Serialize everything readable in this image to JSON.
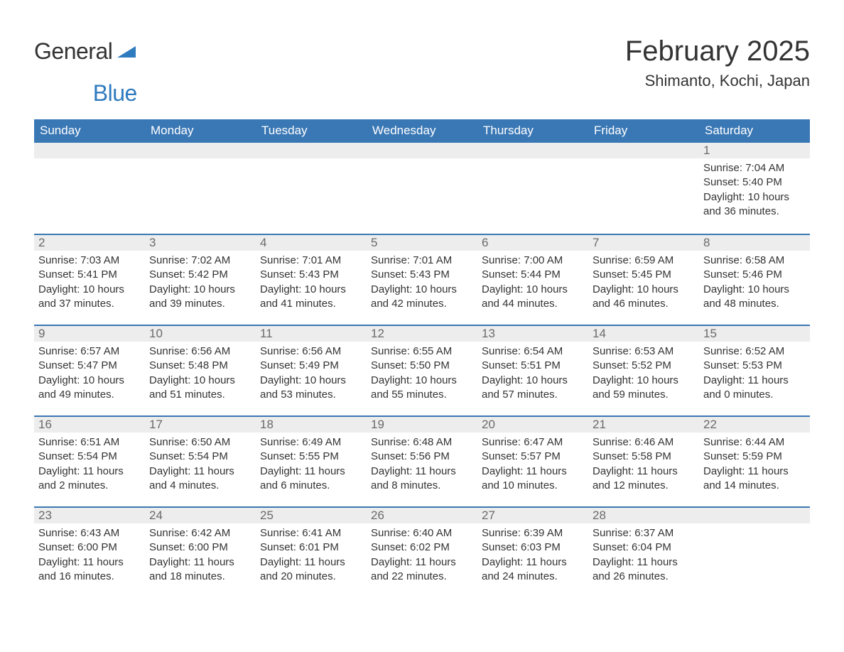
{
  "logo": {
    "part1": "General",
    "part2": "Blue"
  },
  "title": "February 2025",
  "subtitle": "Shimanto, Kochi, Japan",
  "colors": {
    "header_bg": "#3a78b5",
    "header_text": "#ffffff",
    "daynum_bg": "#ededed",
    "daynum_text": "#6a6a6a",
    "body_text": "#333333",
    "rule": "#3a78b5",
    "logo_accent": "#2f7bbf"
  },
  "weekdays": [
    "Sunday",
    "Monday",
    "Tuesday",
    "Wednesday",
    "Thursday",
    "Friday",
    "Saturday"
  ],
  "weeks": [
    [
      {
        "n": "",
        "empty": true
      },
      {
        "n": "",
        "empty": true
      },
      {
        "n": "",
        "empty": true
      },
      {
        "n": "",
        "empty": true
      },
      {
        "n": "",
        "empty": true
      },
      {
        "n": "",
        "empty": true
      },
      {
        "n": "1",
        "sunrise": "Sunrise: 7:04 AM",
        "sunset": "Sunset: 5:40 PM",
        "day1": "Daylight: 10 hours",
        "day2": "and 36 minutes."
      }
    ],
    [
      {
        "n": "2",
        "sunrise": "Sunrise: 7:03 AM",
        "sunset": "Sunset: 5:41 PM",
        "day1": "Daylight: 10 hours",
        "day2": "and 37 minutes."
      },
      {
        "n": "3",
        "sunrise": "Sunrise: 7:02 AM",
        "sunset": "Sunset: 5:42 PM",
        "day1": "Daylight: 10 hours",
        "day2": "and 39 minutes."
      },
      {
        "n": "4",
        "sunrise": "Sunrise: 7:01 AM",
        "sunset": "Sunset: 5:43 PM",
        "day1": "Daylight: 10 hours",
        "day2": "and 41 minutes."
      },
      {
        "n": "5",
        "sunrise": "Sunrise: 7:01 AM",
        "sunset": "Sunset: 5:43 PM",
        "day1": "Daylight: 10 hours",
        "day2": "and 42 minutes."
      },
      {
        "n": "6",
        "sunrise": "Sunrise: 7:00 AM",
        "sunset": "Sunset: 5:44 PM",
        "day1": "Daylight: 10 hours",
        "day2": "and 44 minutes."
      },
      {
        "n": "7",
        "sunrise": "Sunrise: 6:59 AM",
        "sunset": "Sunset: 5:45 PM",
        "day1": "Daylight: 10 hours",
        "day2": "and 46 minutes."
      },
      {
        "n": "8",
        "sunrise": "Sunrise: 6:58 AM",
        "sunset": "Sunset: 5:46 PM",
        "day1": "Daylight: 10 hours",
        "day2": "and 48 minutes."
      }
    ],
    [
      {
        "n": "9",
        "sunrise": "Sunrise: 6:57 AM",
        "sunset": "Sunset: 5:47 PM",
        "day1": "Daylight: 10 hours",
        "day2": "and 49 minutes."
      },
      {
        "n": "10",
        "sunrise": "Sunrise: 6:56 AM",
        "sunset": "Sunset: 5:48 PM",
        "day1": "Daylight: 10 hours",
        "day2": "and 51 minutes."
      },
      {
        "n": "11",
        "sunrise": "Sunrise: 6:56 AM",
        "sunset": "Sunset: 5:49 PM",
        "day1": "Daylight: 10 hours",
        "day2": "and 53 minutes."
      },
      {
        "n": "12",
        "sunrise": "Sunrise: 6:55 AM",
        "sunset": "Sunset: 5:50 PM",
        "day1": "Daylight: 10 hours",
        "day2": "and 55 minutes."
      },
      {
        "n": "13",
        "sunrise": "Sunrise: 6:54 AM",
        "sunset": "Sunset: 5:51 PM",
        "day1": "Daylight: 10 hours",
        "day2": "and 57 minutes."
      },
      {
        "n": "14",
        "sunrise": "Sunrise: 6:53 AM",
        "sunset": "Sunset: 5:52 PM",
        "day1": "Daylight: 10 hours",
        "day2": "and 59 minutes."
      },
      {
        "n": "15",
        "sunrise": "Sunrise: 6:52 AM",
        "sunset": "Sunset: 5:53 PM",
        "day1": "Daylight: 11 hours",
        "day2": "and 0 minutes."
      }
    ],
    [
      {
        "n": "16",
        "sunrise": "Sunrise: 6:51 AM",
        "sunset": "Sunset: 5:54 PM",
        "day1": "Daylight: 11 hours",
        "day2": "and 2 minutes."
      },
      {
        "n": "17",
        "sunrise": "Sunrise: 6:50 AM",
        "sunset": "Sunset: 5:54 PM",
        "day1": "Daylight: 11 hours",
        "day2": "and 4 minutes."
      },
      {
        "n": "18",
        "sunrise": "Sunrise: 6:49 AM",
        "sunset": "Sunset: 5:55 PM",
        "day1": "Daylight: 11 hours",
        "day2": "and 6 minutes."
      },
      {
        "n": "19",
        "sunrise": "Sunrise: 6:48 AM",
        "sunset": "Sunset: 5:56 PM",
        "day1": "Daylight: 11 hours",
        "day2": "and 8 minutes."
      },
      {
        "n": "20",
        "sunrise": "Sunrise: 6:47 AM",
        "sunset": "Sunset: 5:57 PM",
        "day1": "Daylight: 11 hours",
        "day2": "and 10 minutes."
      },
      {
        "n": "21",
        "sunrise": "Sunrise: 6:46 AM",
        "sunset": "Sunset: 5:58 PM",
        "day1": "Daylight: 11 hours",
        "day2": "and 12 minutes."
      },
      {
        "n": "22",
        "sunrise": "Sunrise: 6:44 AM",
        "sunset": "Sunset: 5:59 PM",
        "day1": "Daylight: 11 hours",
        "day2": "and 14 minutes."
      }
    ],
    [
      {
        "n": "23",
        "sunrise": "Sunrise: 6:43 AM",
        "sunset": "Sunset: 6:00 PM",
        "day1": "Daylight: 11 hours",
        "day2": "and 16 minutes."
      },
      {
        "n": "24",
        "sunrise": "Sunrise: 6:42 AM",
        "sunset": "Sunset: 6:00 PM",
        "day1": "Daylight: 11 hours",
        "day2": "and 18 minutes."
      },
      {
        "n": "25",
        "sunrise": "Sunrise: 6:41 AM",
        "sunset": "Sunset: 6:01 PM",
        "day1": "Daylight: 11 hours",
        "day2": "and 20 minutes."
      },
      {
        "n": "26",
        "sunrise": "Sunrise: 6:40 AM",
        "sunset": "Sunset: 6:02 PM",
        "day1": "Daylight: 11 hours",
        "day2": "and 22 minutes."
      },
      {
        "n": "27",
        "sunrise": "Sunrise: 6:39 AM",
        "sunset": "Sunset: 6:03 PM",
        "day1": "Daylight: 11 hours",
        "day2": "and 24 minutes."
      },
      {
        "n": "28",
        "sunrise": "Sunrise: 6:37 AM",
        "sunset": "Sunset: 6:04 PM",
        "day1": "Daylight: 11 hours",
        "day2": "and 26 minutes."
      },
      {
        "n": "",
        "empty": true
      }
    ]
  ]
}
